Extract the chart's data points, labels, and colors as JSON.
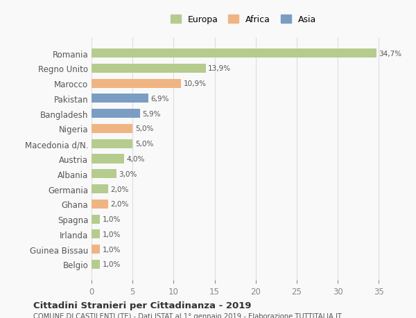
{
  "countries": [
    "Romania",
    "Regno Unito",
    "Marocco",
    "Pakistan",
    "Bangladesh",
    "Nigeria",
    "Macedonia d/N.",
    "Austria",
    "Albania",
    "Germania",
    "Ghana",
    "Spagna",
    "Irlanda",
    "Guinea Bissau",
    "Belgio"
  ],
  "values": [
    34.7,
    13.9,
    10.9,
    6.9,
    5.9,
    5.0,
    5.0,
    4.0,
    3.0,
    2.0,
    2.0,
    1.0,
    1.0,
    1.0,
    1.0
  ],
  "labels": [
    "34,7%",
    "13,9%",
    "10,9%",
    "6,9%",
    "5,9%",
    "5,0%",
    "5,0%",
    "4,0%",
    "3,0%",
    "2,0%",
    "2,0%",
    "1,0%",
    "1,0%",
    "1,0%",
    "1,0%"
  ],
  "continents": [
    "Europa",
    "Europa",
    "Africa",
    "Asia",
    "Asia",
    "Africa",
    "Europa",
    "Europa",
    "Europa",
    "Europa",
    "Africa",
    "Europa",
    "Europa",
    "Africa",
    "Europa"
  ],
  "colors": {
    "Europa": "#b5cc8e",
    "Africa": "#f0b482",
    "Asia": "#7b9dc4"
  },
  "legend_colors": {
    "Europa": "#b5cc8e",
    "Africa": "#f0b482",
    "Asia": "#7b9dc4"
  },
  "xlim": [
    0,
    37
  ],
  "xticks": [
    0,
    5,
    10,
    15,
    20,
    25,
    30,
    35
  ],
  "title": "Cittadini Stranieri per Cittadinanza - 2019",
  "subtitle": "COMUNE DI CASTILENTI (TE) - Dati ISTAT al 1° gennaio 2019 - Elaborazione TUTTITALIA.IT",
  "background_color": "#f9f9f9",
  "grid_color": "#dddddd",
  "bar_height": 0.6
}
